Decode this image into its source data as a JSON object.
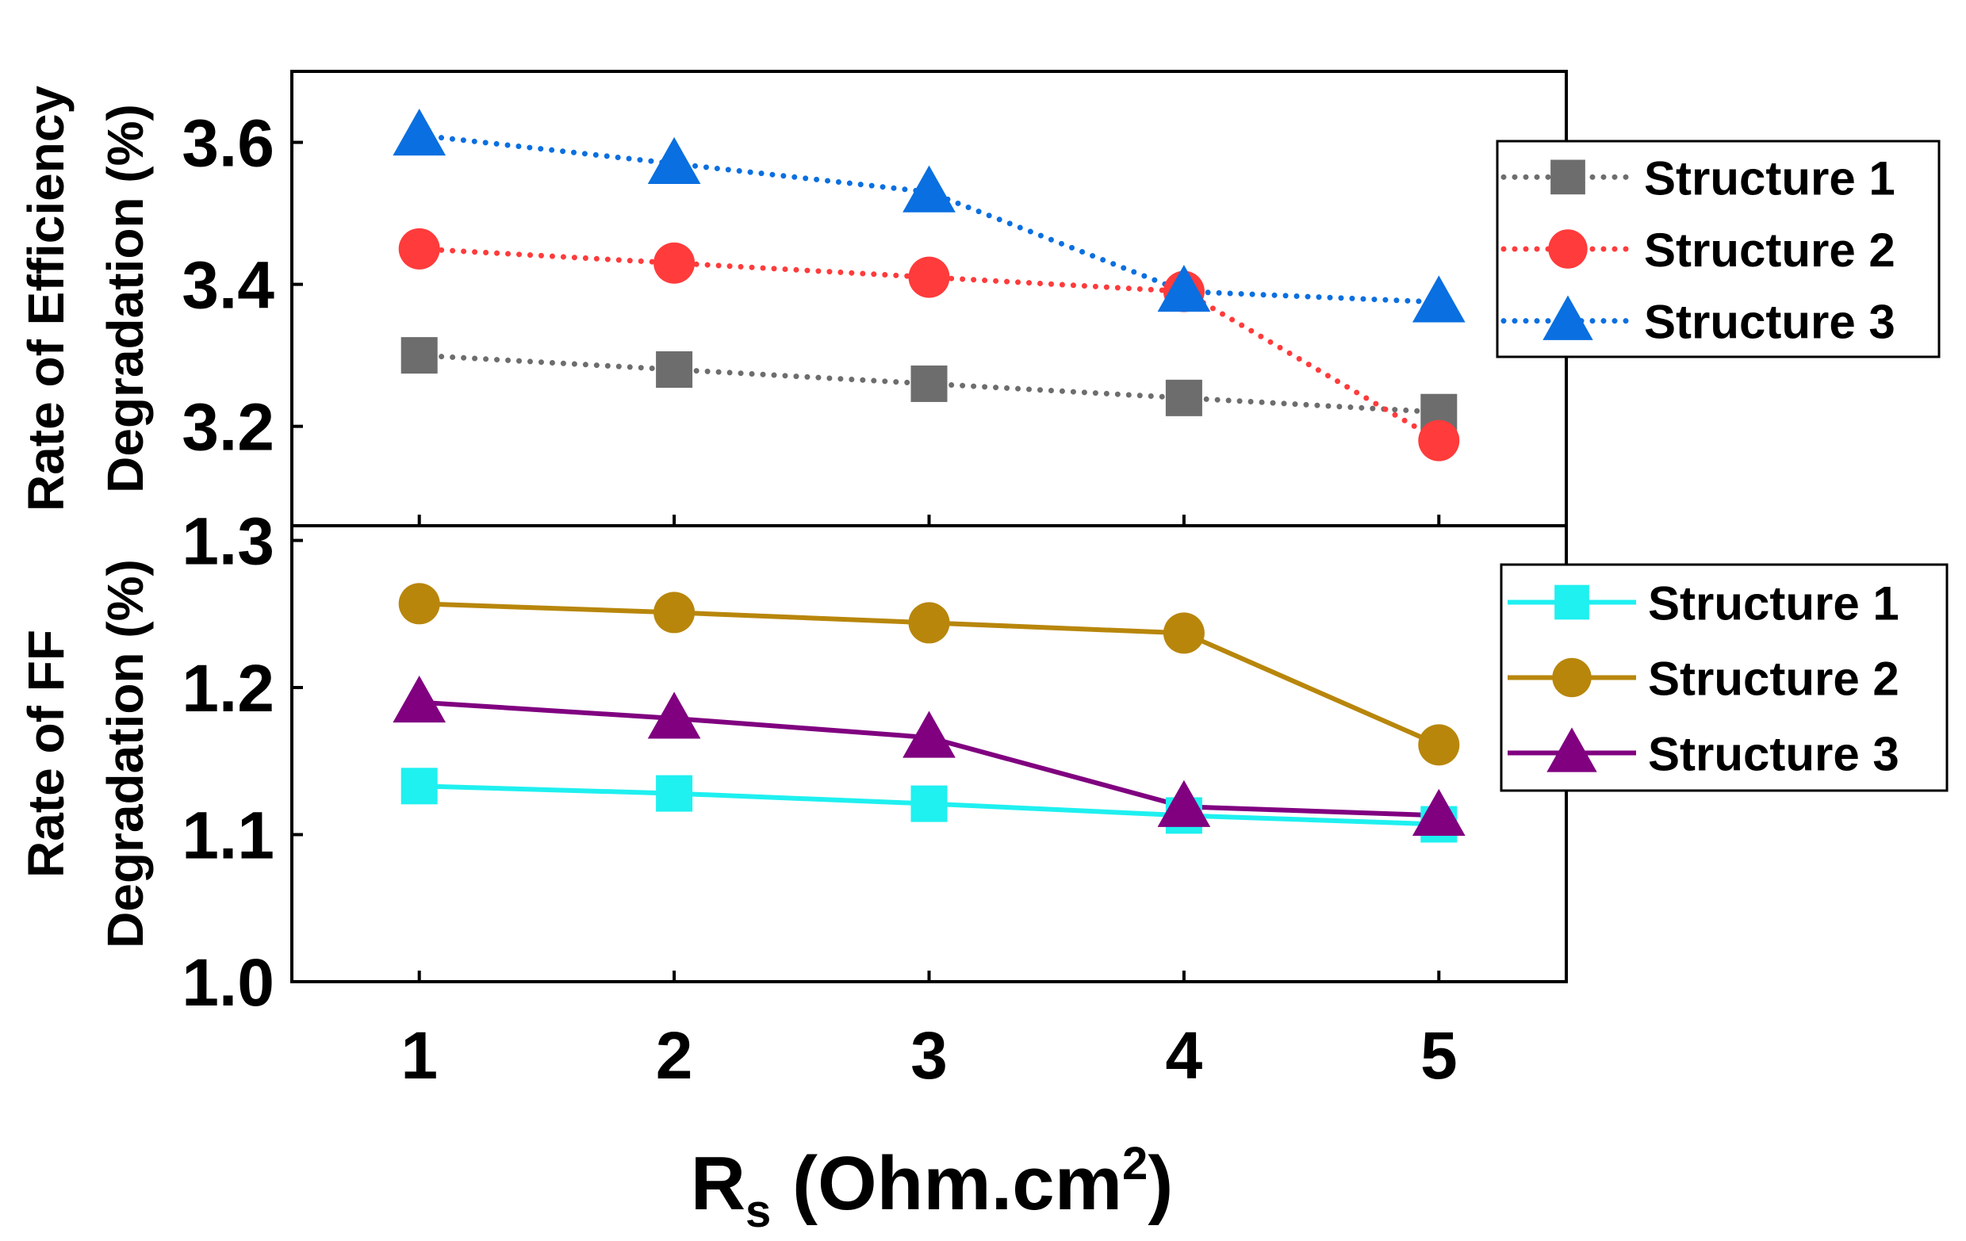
{
  "chart_data": [
    {
      "type": "line",
      "panel": "top",
      "ylabel_line1": "Rate of Efficiency",
      "ylabel_line2": "Degradation (%)",
      "x": [
        1,
        2,
        3,
        4,
        5
      ],
      "ylim": [
        3.06,
        3.7
      ],
      "yticks": [
        3.2,
        3.4,
        3.6
      ],
      "ytick_labels": [
        "3.2",
        "3.4",
        "3.6"
      ],
      "line_style": "dotted",
      "legend_position": "right",
      "series": [
        {
          "name": "Structure 1",
          "marker": "square",
          "color": "#6d6d6d",
          "values": [
            3.3,
            3.28,
            3.26,
            3.24,
            3.22
          ]
        },
        {
          "name": "Structure 2",
          "marker": "circle",
          "color": "#ff3b3b",
          "values": [
            3.45,
            3.43,
            3.41,
            3.39,
            3.18
          ]
        },
        {
          "name": "Structure 3",
          "marker": "triangle",
          "color": "#0a6fe0",
          "values": [
            3.61,
            3.57,
            3.53,
            3.39,
            3.375
          ]
        }
      ]
    },
    {
      "type": "line",
      "panel": "bottom",
      "ylabel_line1": "Rate of FF",
      "ylabel_line2": "Degradation (%)",
      "x": [
        1,
        2,
        3,
        4,
        5
      ],
      "ylim": [
        1.0,
        1.31
      ],
      "yticks": [
        1.0,
        1.1,
        1.2,
        1.3
      ],
      "ytick_labels": [
        "1.0",
        "1.1",
        "1.2",
        "1.3"
      ],
      "line_style": "solid",
      "legend_position": "right",
      "series": [
        {
          "name": "Structure 1",
          "marker": "square",
          "color": "#1ff0f0",
          "values": [
            1.133,
            1.128,
            1.121,
            1.113,
            1.107
          ]
        },
        {
          "name": "Structure 2",
          "marker": "circle",
          "color": "#b8860b",
          "values": [
            1.257,
            1.251,
            1.244,
            1.237,
            1.161
          ]
        },
        {
          "name": "Structure 3",
          "marker": "triangle",
          "color": "#800080",
          "values": [
            1.19,
            1.179,
            1.166,
            1.119,
            1.113
          ]
        }
      ]
    }
  ],
  "x_axis": {
    "tick_labels": [
      "1",
      "2",
      "3",
      "4",
      "5"
    ],
    "label_main": "R",
    "label_sub": "s",
    "label_mid": " (Ohm.cm",
    "label_sup": "2",
    "label_end": ")"
  }
}
